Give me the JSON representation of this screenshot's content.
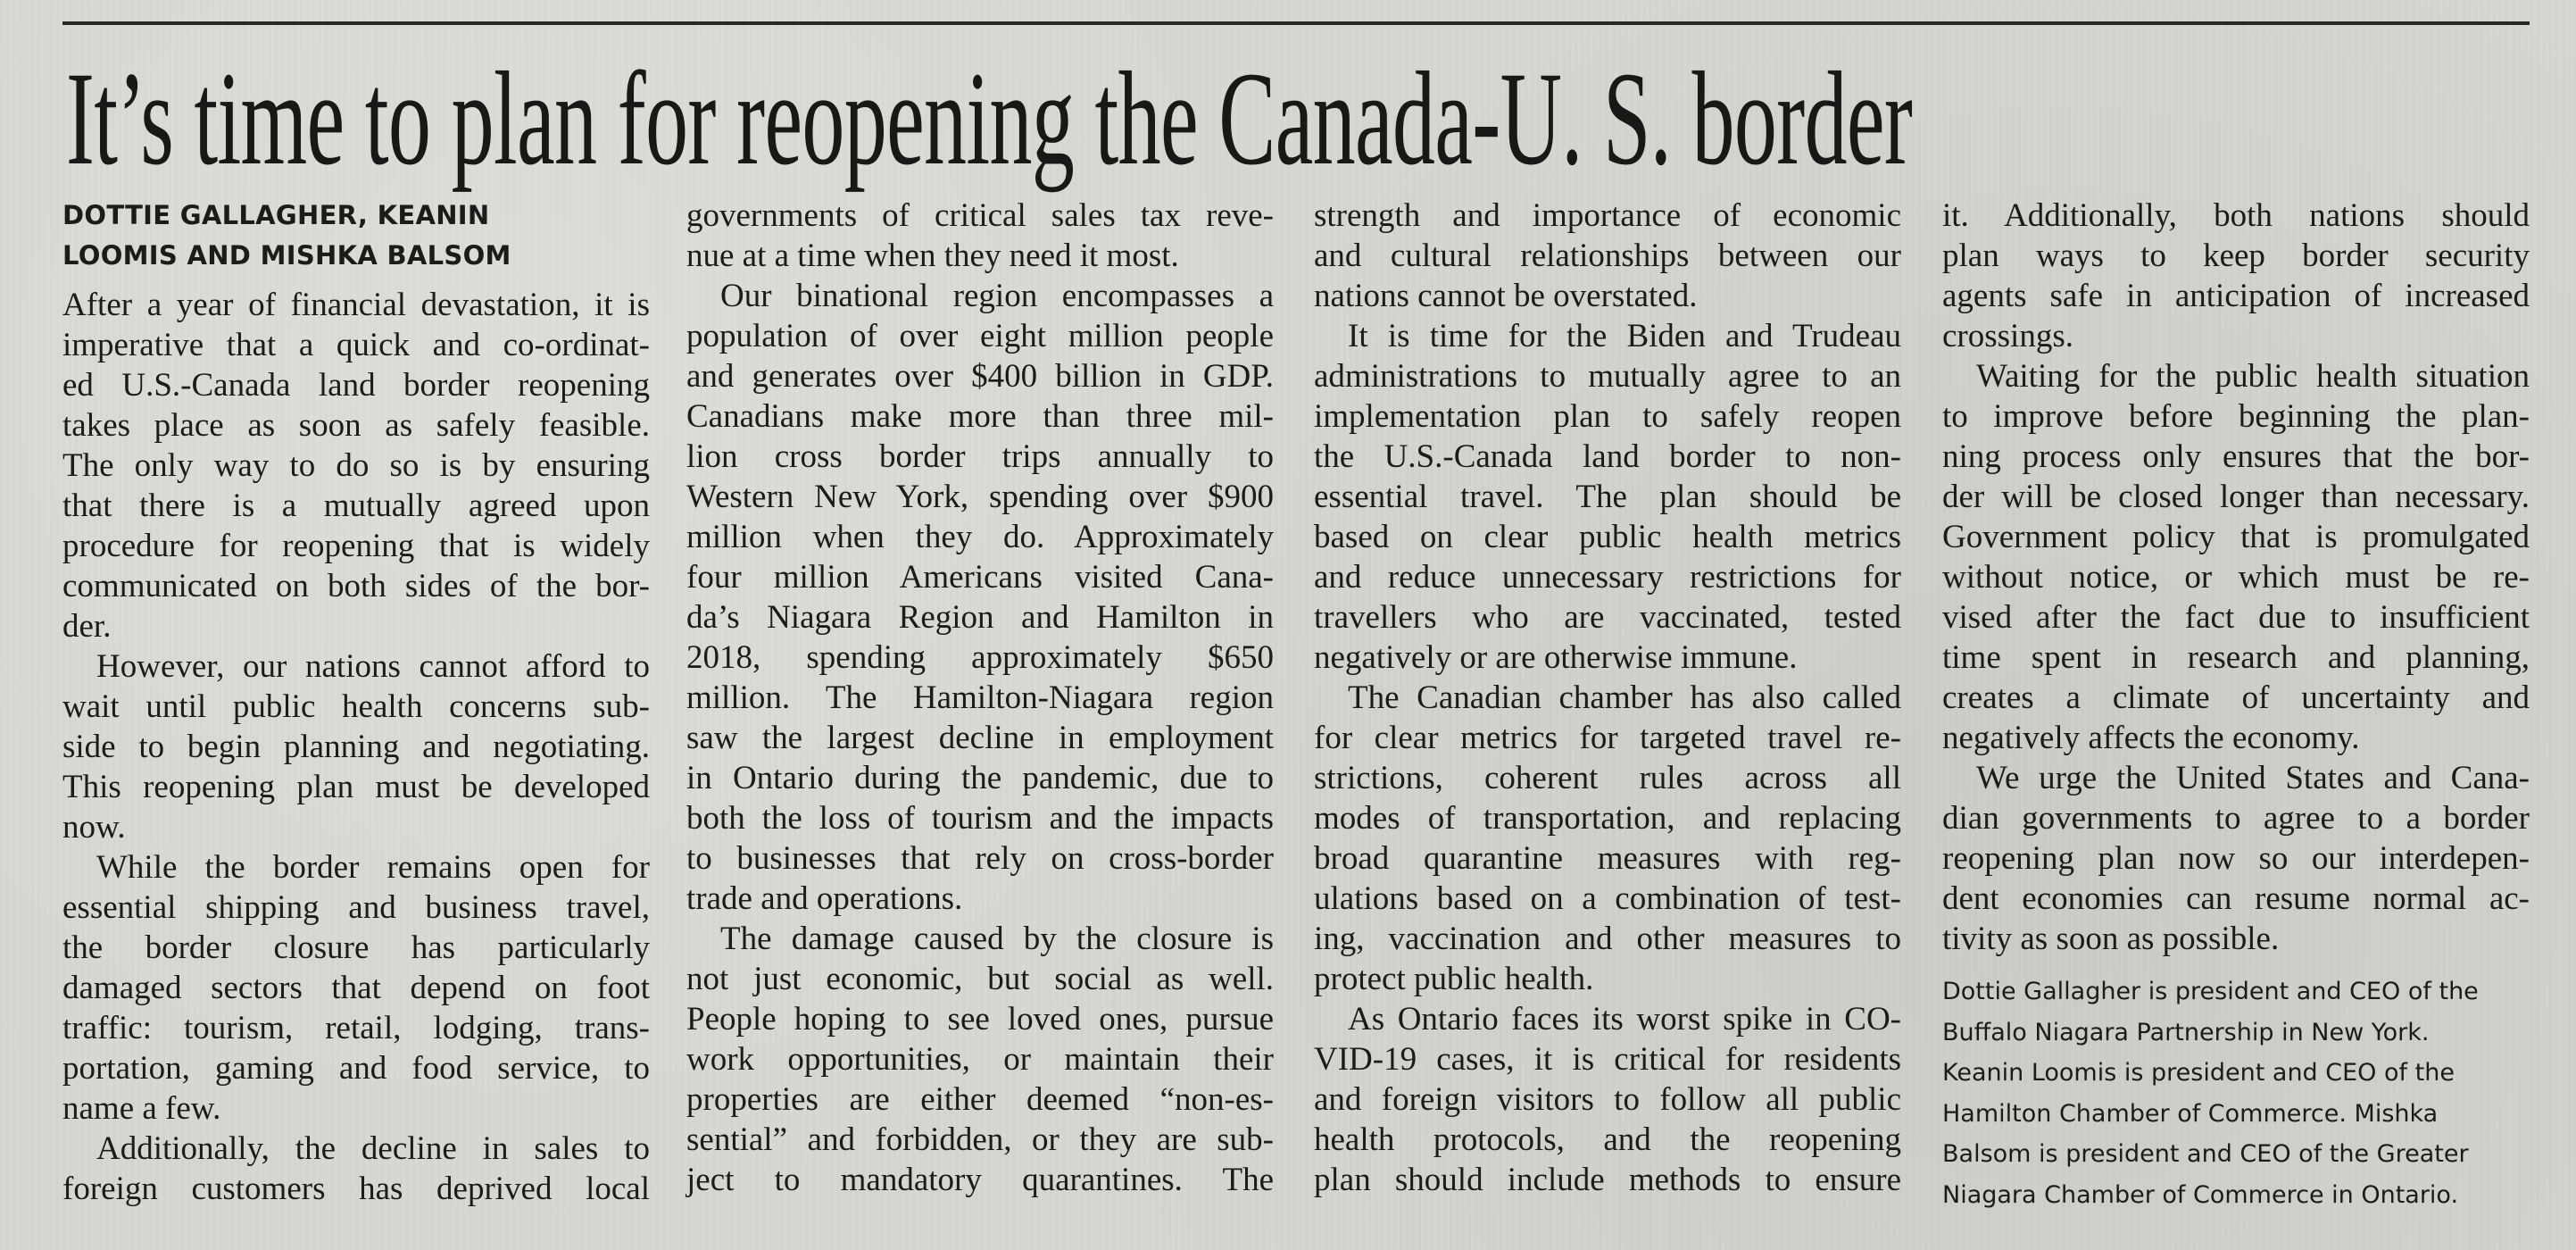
{
  "headline": "It’s time to plan for reopening the Canada-U. S. border",
  "byline": [
    "DOTTIE GALLAGHER, KEANIN",
    "LOOMIS AND MISHKA BALSOM"
  ],
  "columns": [
    {
      "paragraphs": [
        {
          "indent": false,
          "lines": [
            "After a year of financial devastation, it is",
            "imperative that a quick and co-ordinat-",
            "ed U.S.-Canada land border reopening",
            "takes place as soon as safely feasible.",
            "The only way to do so is by ensuring",
            "that there is a mutually agreed upon",
            "procedure for reopening that is widely",
            "communicated on both sides of the bor-",
            "der."
          ]
        },
        {
          "indent": true,
          "lines": [
            "However, our nations cannot afford to",
            "wait until public health concerns sub-",
            "side to begin planning and negotiating.",
            "This reopening plan must be developed",
            "now."
          ]
        },
        {
          "indent": true,
          "lines": [
            "While the border remains open for",
            "essential shipping and business travel,",
            "the border closure has particularly",
            "damaged sectors that depend on foot",
            "traffic: tourism, retail, lodging, trans-",
            "portation, gaming and food service, to",
            "name a few."
          ]
        },
        {
          "indent": true,
          "continues": true,
          "lines": [
            "Additionally, the decline in sales to",
            "foreign customers has deprived local"
          ]
        }
      ]
    },
    {
      "paragraphs": [
        {
          "indent": false,
          "lines": [
            "governments of critical sales tax reve-",
            "nue at a time when they need it most."
          ]
        },
        {
          "indent": true,
          "lines": [
            "Our binational region encompasses a",
            "population of over eight million people",
            "and generates over $400 billion in GDP.",
            "Canadians make more than three mil-",
            "lion cross border trips annually to",
            "Western New York, spending over $900",
            "million when they do. Approximately",
            "four million Americans visited Cana-",
            "da’s Niagara Region and Hamilton in",
            "2018, spending approximately $650",
            "million. The Hamilton-Niagara region",
            "saw the largest decline in employment",
            "in Ontario during the pandemic, due to",
            "both the loss of tourism and the impacts",
            "to businesses that rely on cross-border",
            "trade and operations."
          ]
        },
        {
          "indent": true,
          "continues": true,
          "lines": [
            "The damage caused by the closure is",
            "not just economic, but social as well.",
            "People hoping to see loved ones, pursue",
            "work opportunities, or maintain their",
            "properties are either deemed “non-es-",
            "sential” and forbidden, or they are sub-",
            "ject to mandatory quarantines. The"
          ]
        }
      ]
    },
    {
      "paragraphs": [
        {
          "indent": false,
          "lines": [
            "strength and importance of economic",
            "and cultural relationships between our",
            "nations cannot be overstated."
          ]
        },
        {
          "indent": true,
          "lines": [
            "It is time for the Biden and Trudeau",
            "administrations to mutually agree to an",
            "implementation plan to safely reopen",
            "the U.S.-Canada land border to non-",
            "essential travel. The plan should be",
            "based on clear public health metrics",
            "and reduce unnecessary restrictions for",
            "travellers who are vaccinated, tested",
            "negatively or are otherwise immune."
          ]
        },
        {
          "indent": true,
          "lines": [
            "The Canadian chamber has also called",
            "for clear metrics for targeted travel re-",
            "strictions, coherent rules across all",
            "modes of transportation, and replacing",
            "broad quarantine measures with reg-",
            "ulations based on a combination of test-",
            "ing, vaccination and other measures to",
            "protect public health."
          ]
        },
        {
          "indent": true,
          "continues": true,
          "lines": [
            "As Ontario faces its worst spike in CO-",
            "VID-19 cases, it is critical for residents",
            "and foreign visitors to follow all public",
            "health protocols, and the reopening",
            "plan should include methods to ensure"
          ]
        }
      ]
    },
    {
      "paragraphs": [
        {
          "indent": false,
          "lines": [
            "it. Additionally, both nations should",
            "plan ways to keep border security",
            "agents safe in anticipation of increased",
            "crossings."
          ]
        },
        {
          "indent": true,
          "lines": [
            "Waiting for the public health situation",
            "to improve before beginning the plan-",
            "ning process only ensures that the bor-",
            "der will be closed longer than necessary.",
            "Government policy that is promulgated",
            "without notice, or which must be re-",
            "vised after the fact due to insufficient",
            "time spent in research and planning,",
            "creates a climate of uncertainty and",
            "negatively affects the economy."
          ]
        },
        {
          "indent": true,
          "lines": [
            "We urge the United States and Cana-",
            "dian governments to agree to a border",
            "reopening plan now so our interdepen-",
            "dent economies can resume normal ac-",
            "tivity as soon as possible."
          ]
        }
      ]
    }
  ],
  "bio": [
    "Dottie Gallagher is president and CEO of the",
    "Buffalo Niagara Partnership in New York.",
    "Keanin Loomis is president and CEO of the",
    "Hamilton Chamber of Commerce. Mishka",
    "Balsom is president and CEO of the Greater",
    "Niagara Chamber of Commerce in Ontario."
  ]
}
